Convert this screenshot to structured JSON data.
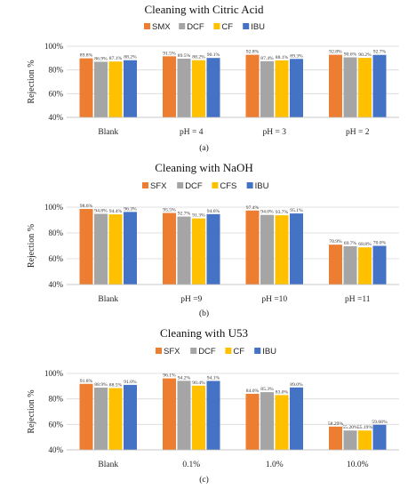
{
  "colors": {
    "series1": "#ED7D31",
    "series2": "#A5A5A5",
    "series3": "#FFC000",
    "series4": "#4472C4"
  },
  "chart_data": [
    {
      "type": "bar",
      "title": "Cleaning with Citric Acid",
      "ylabel": "Rejection %",
      "ylim": [
        40,
        100
      ],
      "yticks": [
        "40%",
        "60%",
        "80%",
        "100%"
      ],
      "categories": [
        "Blank",
        "pH = 4",
        "pH = 3",
        "pH = 2"
      ],
      "series": [
        {
          "name": "SMX",
          "values": [
            89.8,
            91.5,
            92.8,
            92.8
          ],
          "labels": [
            "89.8%",
            "91.5%",
            "92.8%",
            "92.8%"
          ]
        },
        {
          "name": "DCF",
          "values": [
            86.9,
            89.5,
            87.4,
            90.6
          ],
          "labels": [
            "86.9%",
            "89.5%",
            "87.4%",
            "90.6%"
          ]
        },
        {
          "name": "CF",
          "values": [
            87.1,
            88.2,
            88.1,
            90.2
          ],
          "labels": [
            "87.1%",
            "88.2%",
            "88.1%",
            "90.2%"
          ]
        },
        {
          "name": "IBU",
          "values": [
            88.2,
            90.1,
            89.3,
            92.7
          ],
          "labels": [
            "88.2%",
            "90.1%",
            "89.3%",
            "92.7%"
          ]
        }
      ],
      "legend": "top",
      "grid": true,
      "sublabel": "(a)"
    },
    {
      "type": "bar",
      "title": "Cleaning with NaOH",
      "ylabel": "Rejection %",
      "ylim": [
        40,
        100
      ],
      "yticks": [
        "40%",
        "60%",
        "80%",
        "100%"
      ],
      "categories": [
        "Blank",
        "pH =9",
        "pH =10",
        "pH =11"
      ],
      "series": [
        {
          "name": "SFX",
          "values": [
            98.6,
            95.5,
            97.4,
            70.9
          ],
          "labels": [
            "98.6%",
            "95.5%",
            "97.4%",
            "70.9%"
          ]
        },
        {
          "name": "DCF",
          "values": [
            94.8,
            92.7,
            94.0,
            69.7
          ],
          "labels": [
            "94.8%",
            "92.7%",
            "94.0%",
            "69.7%"
          ]
        },
        {
          "name": "CFS",
          "values": [
            94.4,
            91.3,
            93.7,
            68.8
          ],
          "labels": [
            "94.4%",
            "91.3%",
            "93.7%",
            "68.8%"
          ]
        },
        {
          "name": "IBU",
          "values": [
            96.3,
            94.6,
            95.1,
            70.0
          ],
          "labels": [
            "96.3%",
            "94.6%",
            "95.1%",
            "70.0%"
          ]
        }
      ],
      "legend": "top",
      "grid": true,
      "sublabel": "(b)"
    },
    {
      "type": "bar",
      "title": "Cleaning with U53",
      "ylabel": "Rejection %",
      "ylim": [
        40,
        100
      ],
      "yticks": [
        "40%",
        "60%",
        "80%",
        "100%"
      ],
      "categories": [
        "Blank",
        "0.1%",
        "1.0%",
        "10.0%"
      ],
      "series": [
        {
          "name": "SFX",
          "values": [
            91.8,
            96.1,
            84.0,
            58.29
          ],
          "labels": [
            "91.8%",
            "96.1%",
            "84.0%",
            "58.29%"
          ]
        },
        {
          "name": "DCF",
          "values": [
            88.9,
            94.2,
            85.3,
            55.2
          ],
          "labels": [
            "88.9%",
            "94.2%",
            "85.3%",
            "55.20%"
          ]
        },
        {
          "name": "CF",
          "values": [
            88.5,
            90.4,
            83.0,
            55.19
          ],
          "labels": [
            "88.5%",
            "90.4%",
            "83.0%",
            "55.19%"
          ]
        },
        {
          "name": "IBU",
          "values": [
            91.0,
            94.1,
            89.0,
            59.68
          ],
          "labels": [
            "91.0%",
            "94.1%",
            "89.0%",
            "59.68%"
          ]
        }
      ],
      "legend": "top",
      "grid": true,
      "sublabel": "(c)"
    }
  ]
}
